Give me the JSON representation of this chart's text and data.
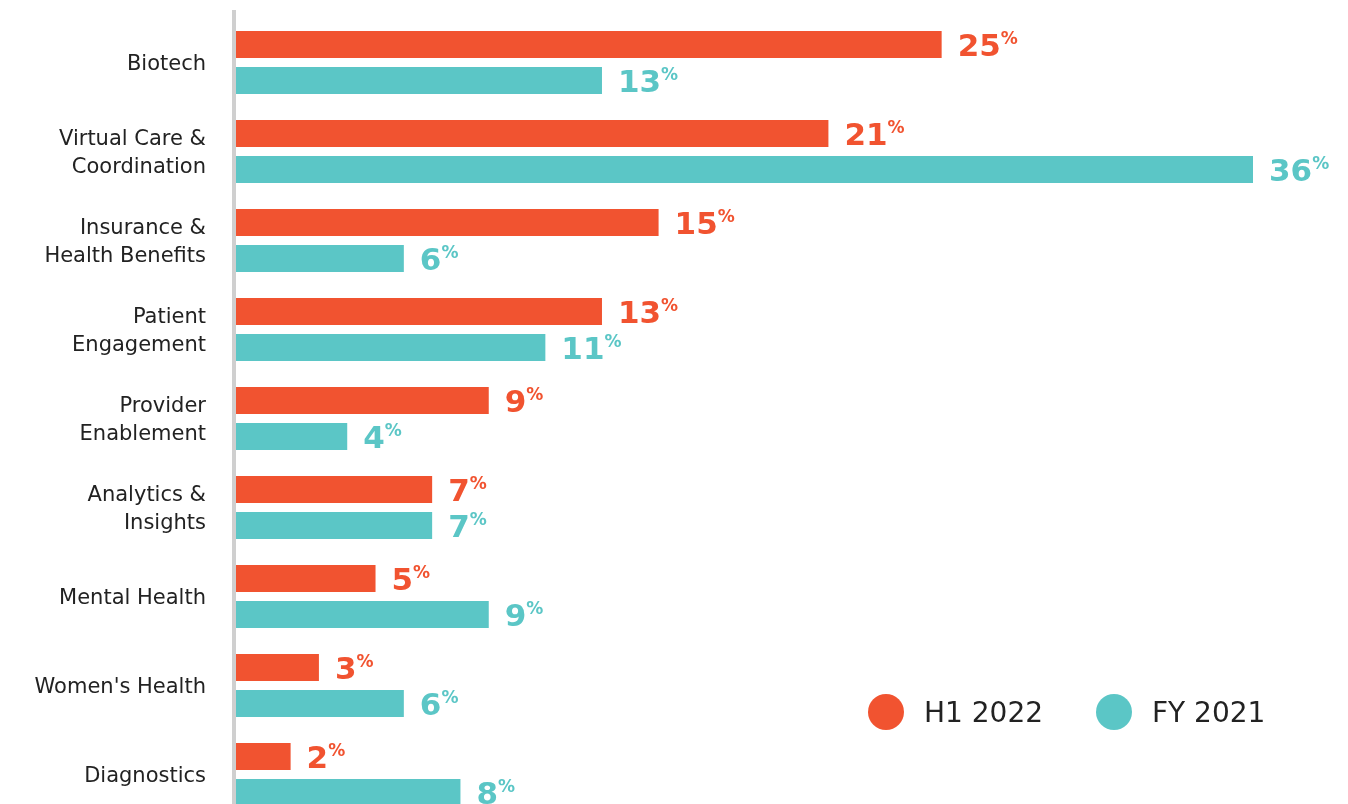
{
  "chart_data": {
    "type": "bar",
    "orientation": "horizontal",
    "categories": [
      "Biotech",
      "Virtual Care & Coordination",
      "Insurance & Health Benefits",
      "Patient Engagement",
      "Provider Enablement",
      "Analytics & Insights",
      "Mental Health",
      "Women's Health",
      "Diagnostics"
    ],
    "series": [
      {
        "name": "H1 2022",
        "color": "#f15330",
        "values": [
          25,
          21,
          15,
          13,
          9,
          7,
          5,
          3,
          2
        ],
        "value_labels": [
          "25$^{%}$",
          "21$^{%}$",
          "15$^{%}$",
          "13$^{%}$",
          "9$^{%}$",
          "7$^{%}$",
          "5$^{%}$",
          "3$^{%}$",
          "2$^{%}$"
        ]
      },
      {
        "name": "FY 2021",
        "color": "#5bc6c6",
        "values": [
          13,
          36,
          6,
          11,
          4,
          7,
          9,
          6,
          8
        ],
        "value_labels": [
          "13$^{%}$",
          "36$^{%}$",
          "6$^{%}$",
          "11$^{%}$",
          "4$^{%}$",
          "7$^{%}$",
          "9$^{%}$",
          "6$^{%}$",
          "8$^{%}$"
        ]
      }
    ],
    "legend": "bottom right"
  }
}
